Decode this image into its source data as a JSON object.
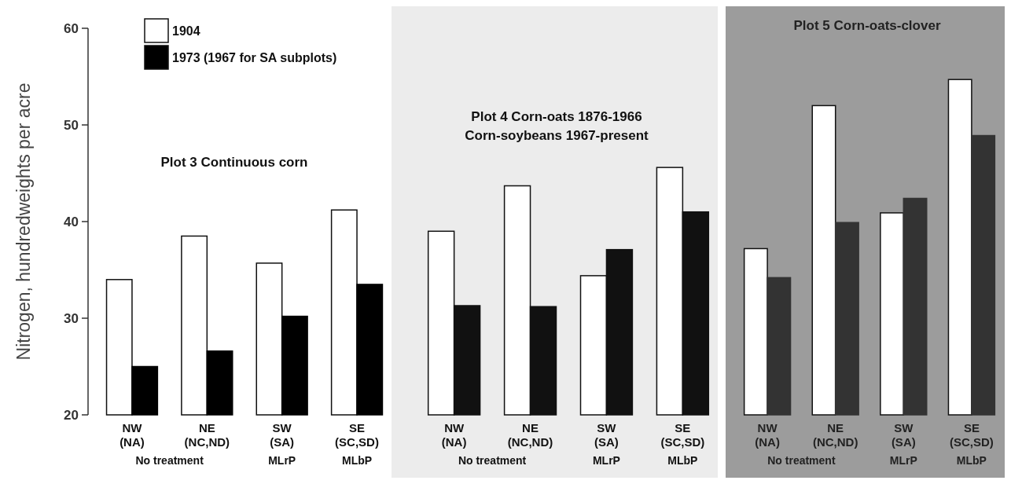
{
  "chart_data": [
    {
      "type": "bar",
      "title": "Plot 3   Continuous corn",
      "ylabel": "Nitrogen, hundredweights per acre",
      "categories": [
        "NW (NA)",
        "NE (NC,ND)",
        "SW (SA)",
        "SE (SC,SD)"
      ],
      "series": [
        {
          "name": "1904",
          "color": "#ffffff",
          "values": [
            34.0,
            38.5,
            35.7,
            41.2
          ]
        },
        {
          "name": "1973 (1967 for SA subplots)",
          "color": "#000000",
          "values": [
            25.0,
            26.6,
            30.2,
            33.5
          ]
        }
      ],
      "ylim": [
        20,
        60
      ],
      "yticks": [
        20,
        30,
        40,
        50,
        60
      ],
      "legend": "top left",
      "annotations": [
        "No treatment",
        "MLrP",
        "MLbP"
      ]
    },
    {
      "type": "bar",
      "title": "Plot 4   Corn-oats 1876-1966",
      "subtitle": "Corn-soybeans 1967-present",
      "categories": [
        "NW (NA)",
        "NE (NC,ND)",
        "SW (SA)",
        "SE (SC,SD)"
      ],
      "series": [
        {
          "color": "#ffffff",
          "values": [
            39.0,
            43.7,
            34.4,
            45.6
          ]
        },
        {
          "color": "#111111",
          "values": [
            31.3,
            31.2,
            37.1,
            41.0
          ]
        }
      ],
      "ylim": [
        20,
        60
      ],
      "tick_labels": "x",
      "annotations": [
        "No treatment",
        "MLrP",
        "MLbP"
      ]
    },
    {
      "type": "bar",
      "title": "Plot 5   Corn-oats-clover",
      "categories": [
        "NW (NA)",
        "NE (NC,ND)",
        "SW (SA)",
        "SE (SC,SD)"
      ],
      "series": [
        {
          "color": "#ffffff",
          "values": [
            37.2,
            52.0,
            40.9,
            54.7
          ]
        },
        {
          "color": "#333333",
          "values": [
            34.2,
            39.9,
            42.4,
            48.9
          ]
        }
      ],
      "ylim": [
        20,
        60
      ],
      "tick_labels": "x",
      "annotations": [
        "No treatment",
        "MLrP",
        "MLbP"
      ]
    }
  ]
}
